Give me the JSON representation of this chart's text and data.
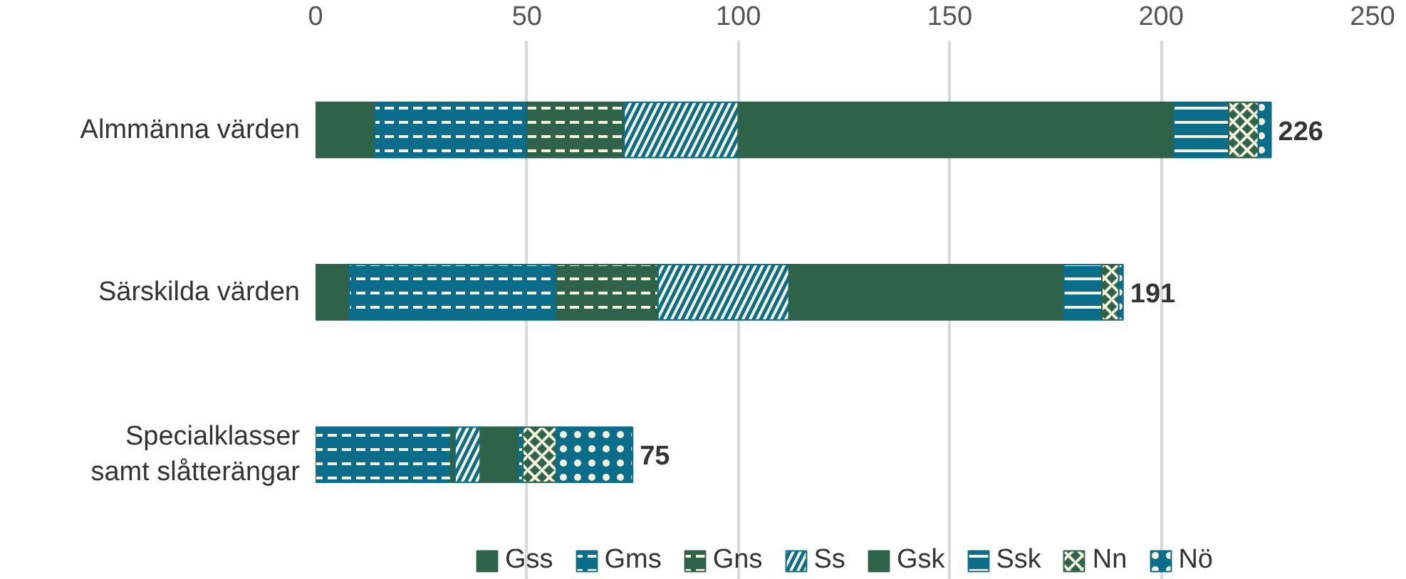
{
  "chart_data": {
    "type": "bar",
    "orientation": "horizontal",
    "stacked": true,
    "categories": [
      "Almmänna värden",
      "Särskilda värden",
      "Specialklasser\nsamt slåtterängar"
    ],
    "xlim": [
      0,
      250
    ],
    "xticks": [
      0,
      50,
      100,
      150,
      200,
      250
    ],
    "grid": "x",
    "legend": "bottom",
    "totals": [
      "226",
      "191",
      "75"
    ],
    "series": [
      {
        "name": "Gss",
        "color": "#2e6349",
        "values": [
          14,
          8,
          0
        ]
      },
      {
        "name": "Gms",
        "color": "#0a6e8a",
        "values": [
          36,
          49,
          32
        ]
      },
      {
        "name": "Gns",
        "color": "#2e6349",
        "values": [
          23,
          24,
          1
        ]
      },
      {
        "name": "Ss",
        "color": "#0a6e8a",
        "values": [
          27,
          31,
          6
        ]
      },
      {
        "name": "Gsk",
        "color": "#2e6349",
        "values": [
          103,
          65,
          9
        ]
      },
      {
        "name": "Ssk",
        "color": "#0a6e8a",
        "values": [
          13,
          9,
          1
        ]
      },
      {
        "name": "Nn",
        "color": "#2e6349",
        "values": [
          7,
          4,
          8
        ]
      },
      {
        "name": "Nö",
        "color": "#0a6e8a",
        "values": [
          3,
          1,
          18
        ]
      }
    ]
  }
}
